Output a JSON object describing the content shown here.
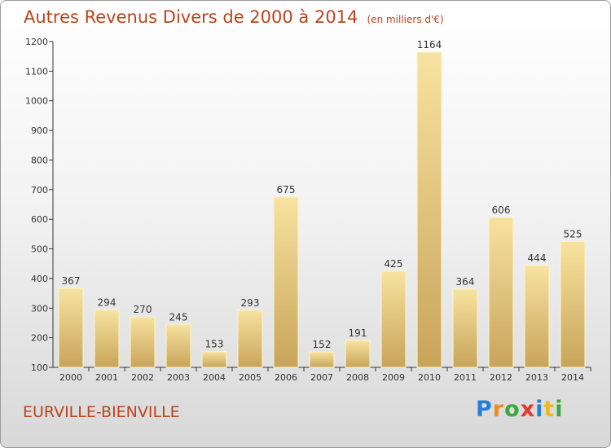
{
  "chart_data": {
    "type": "bar",
    "title": "Autres Revenus Divers de 2000 à 2014",
    "subtitle": "(en milliers d'€)",
    "categories": [
      "2000",
      "2001",
      "2002",
      "2003",
      "2004",
      "2005",
      "2006",
      "2007",
      "2008",
      "2009",
      "2010",
      "2011",
      "2012",
      "2013",
      "2014"
    ],
    "values": [
      367,
      294,
      270,
      245,
      153,
      293,
      675,
      152,
      191,
      425,
      1164,
      364,
      606,
      444,
      525
    ],
    "ylim": [
      100,
      1200
    ],
    "yticks": [
      100,
      200,
      300,
      400,
      500,
      600,
      700,
      800,
      900,
      1000,
      1100,
      1200
    ],
    "grid": false,
    "legend": "none",
    "bar_color_top": "#f7e3a0",
    "bar_color_bottom": "#c8a45a",
    "xlabel": "",
    "ylabel": ""
  },
  "commune": "EURVILLE-BIENVILLE",
  "logo": {
    "letters": [
      "P",
      "r",
      "o",
      "x",
      "i",
      "t",
      "i"
    ],
    "colors": [
      "#2a7fd4",
      "#f08a1c",
      "#3aa83a",
      "#e23a2a",
      "#2a7fd4",
      "#f0b81c",
      "#3aa83a"
    ]
  },
  "colors": {
    "title": "#b8451d",
    "axis": "#333333"
  }
}
